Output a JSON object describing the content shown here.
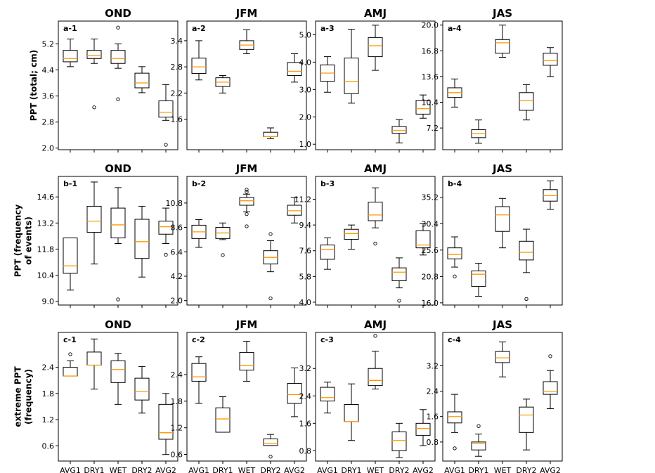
{
  "figure": {
    "row_labels": [
      [
        "PPT (total; cm)"
      ],
      [
        "PPT (frequency",
        "of events)"
      ],
      [
        "extreme PPT",
        "(frequency)"
      ]
    ],
    "colors": {
      "box": "#000000",
      "median": "#ff9900",
      "flier": "#000000"
    }
  },
  "chart_data": [
    {
      "type": "box",
      "label": "a-1",
      "title": "OND",
      "categories": [
        "AVG1",
        "DRY1",
        "WET",
        "DRY2",
        "AVG2"
      ],
      "ylim": [
        1.95,
        5.9
      ],
      "yticks": [
        "2.0",
        "2.8",
        "3.6",
        "4.4",
        "5.2"
      ],
      "xticklabels": false,
      "boxes": [
        {
          "whislo": 4.5,
          "q1": 4.65,
          "med": 4.75,
          "q3": 5.0,
          "whishi": 5.35,
          "fliers": []
        },
        {
          "whislo": 4.6,
          "q1": 4.75,
          "med": 4.85,
          "q3": 5.0,
          "whishi": 5.35,
          "fliers": [
            3.25
          ]
        },
        {
          "whislo": 4.45,
          "q1": 4.6,
          "med": 4.75,
          "q3": 5.0,
          "whishi": 5.2,
          "fliers": [
            5.7,
            3.5
          ]
        },
        {
          "whislo": 3.7,
          "q1": 3.85,
          "med": 4.0,
          "q3": 4.3,
          "whishi": 4.5,
          "fliers": []
        },
        {
          "whislo": 2.85,
          "q1": 2.95,
          "med": 3.1,
          "q3": 3.45,
          "whishi": 3.95,
          "fliers": [
            2.1
          ]
        }
      ]
    },
    {
      "type": "box",
      "label": "a-2",
      "title": "JFM",
      "categories": [
        "AVG1",
        "DRY1",
        "WET",
        "DRY2",
        "AVG2"
      ],
      "ylim": [
        0.9,
        3.85
      ],
      "yticks": [
        "1.6",
        "2.2",
        "2.8",
        "3.4"
      ],
      "xticklabels": false,
      "boxes": [
        {
          "whislo": 2.5,
          "q1": 2.65,
          "med": 2.8,
          "q3": 3.0,
          "whishi": 3.4,
          "fliers": []
        },
        {
          "whislo": 2.2,
          "q1": 2.35,
          "med": 2.45,
          "q3": 2.55,
          "whishi": 2.6,
          "fliers": []
        },
        {
          "whislo": 3.1,
          "q1": 3.2,
          "med": 3.3,
          "q3": 3.4,
          "whishi": 3.65,
          "fliers": []
        },
        {
          "whislo": 1.15,
          "q1": 1.2,
          "med": 1.2,
          "q3": 1.3,
          "whishi": 1.4,
          "fliers": []
        },
        {
          "whislo": 2.45,
          "q1": 2.6,
          "med": 2.7,
          "q3": 2.9,
          "whishi": 3.1,
          "fliers": []
        }
      ]
    },
    {
      "type": "box",
      "label": "a-3",
      "title": "AMJ",
      "categories": [
        "AVG1",
        "DRY1",
        "WET",
        "DRY2",
        "AVG2"
      ],
      "ylim": [
        0.8,
        5.5
      ],
      "yticks": [
        "1.0",
        "2.0",
        "3.0",
        "4.0",
        "5.0"
      ],
      "xticklabels": false,
      "boxes": [
        {
          "whislo": 2.9,
          "q1": 3.3,
          "med": 3.6,
          "q3": 3.9,
          "whishi": 4.2,
          "fliers": []
        },
        {
          "whislo": 2.5,
          "q1": 2.85,
          "med": 3.3,
          "q3": 4.15,
          "whishi": 5.2,
          "fliers": []
        },
        {
          "whislo": 3.7,
          "q1": 4.2,
          "med": 4.6,
          "q3": 4.9,
          "whishi": 5.35,
          "fliers": []
        },
        {
          "whislo": 1.05,
          "q1": 1.4,
          "med": 1.5,
          "q3": 1.65,
          "whishi": 1.9,
          "fliers": []
        },
        {
          "whislo": 1.95,
          "q1": 2.1,
          "med": 2.3,
          "q3": 2.6,
          "whishi": 2.8,
          "fliers": []
        }
      ]
    },
    {
      "type": "box",
      "label": "a-4",
      "title": "JAS",
      "categories": [
        "AVG1",
        "DRY1",
        "WET",
        "DRY2",
        "AVG2"
      ],
      "ylim": [
        4.5,
        20.5
      ],
      "yticks": [
        "7.2",
        "10.4",
        "13.6",
        "16.8",
        "20.0"
      ],
      "xticklabels": false,
      "boxes": [
        {
          "whislo": 9.8,
          "q1": 11.0,
          "med": 11.6,
          "q3": 12.2,
          "whishi": 13.3,
          "fliers": []
        },
        {
          "whislo": 5.3,
          "q1": 6.0,
          "med": 6.5,
          "q3": 7.0,
          "whishi": 8.2,
          "fliers": []
        },
        {
          "whislo": 16.0,
          "q1": 16.5,
          "med": 17.8,
          "q3": 18.2,
          "whishi": 20.0,
          "fliers": []
        },
        {
          "whislo": 8.2,
          "q1": 9.4,
          "med": 10.6,
          "q3": 11.6,
          "whishi": 12.6,
          "fliers": []
        },
        {
          "whislo": 13.6,
          "q1": 15.0,
          "med": 15.6,
          "q3": 16.5,
          "whishi": 17.2,
          "fliers": []
        }
      ]
    },
    {
      "type": "box",
      "label": "b-1",
      "title": "OND",
      "categories": [
        "AVG1",
        "DRY1",
        "WET",
        "DRY2",
        "AVG2"
      ],
      "ylim": [
        8.8,
        15.7
      ],
      "yticks": [
        "9.0",
        "10.4",
        "11.8",
        "13.2",
        "14.6"
      ],
      "xticklabels": false,
      "boxes": [
        {
          "whislo": 9.6,
          "q1": 10.5,
          "med": 10.9,
          "q3": 12.4,
          "whishi": 12.4,
          "fliers": []
        },
        {
          "whislo": 11.0,
          "q1": 12.7,
          "med": 13.3,
          "q3": 14.1,
          "whishi": 15.4,
          "fliers": []
        },
        {
          "whislo": 12.1,
          "q1": 12.4,
          "med": 13.1,
          "q3": 14.0,
          "whishi": 15.1,
          "fliers": [
            9.1
          ]
        },
        {
          "whislo": 10.3,
          "q1": 11.3,
          "med": 12.2,
          "q3": 13.4,
          "whishi": 14.1,
          "fliers": []
        },
        {
          "whislo": 12.1,
          "q1": 12.6,
          "med": 13.0,
          "q3": 13.3,
          "whishi": 14.0,
          "fliers": [
            11.5
          ]
        }
      ]
    },
    {
      "type": "box",
      "label": "b-2",
      "title": "JFM",
      "categories": [
        "AVG1",
        "DRY1",
        "WET",
        "DRY2",
        "AVG2"
      ],
      "ylim": [
        1.6,
        13.2
      ],
      "yticks": [
        "2.0",
        "4.2",
        "6.4",
        "8.6",
        "10.8"
      ],
      "xticklabels": false,
      "boxes": [
        {
          "whislo": 6.8,
          "q1": 7.6,
          "med": 8.2,
          "q3": 8.8,
          "whishi": 9.3,
          "fliers": []
        },
        {
          "whislo": 7.5,
          "q1": 7.6,
          "med": 8.1,
          "q3": 8.6,
          "whishi": 9.0,
          "fliers": [
            6.1
          ]
        },
        {
          "whislo": 10.0,
          "q1": 10.6,
          "med": 11.0,
          "q3": 11.3,
          "whishi": 11.6,
          "fliers": [
            12.0,
            11.8,
            9.8,
            8.7
          ]
        },
        {
          "whislo": 4.6,
          "q1": 5.3,
          "med": 5.9,
          "q3": 6.5,
          "whishi": 7.4,
          "fliers": [
            8.0,
            2.2
          ]
        },
        {
          "whislo": 9.0,
          "q1": 9.7,
          "med": 10.1,
          "q3": 10.6,
          "whishi": 11.3,
          "fliers": []
        }
      ]
    },
    {
      "type": "box",
      "label": "b-3",
      "title": "AMJ",
      "categories": [
        "AVG1",
        "DRY1",
        "WET",
        "DRY2",
        "AVG2"
      ],
      "ylim": [
        3.8,
        12.8
      ],
      "yticks": [
        "4.0",
        "5.8",
        "7.6",
        "9.4",
        "11.2"
      ],
      "xticklabels": false,
      "boxes": [
        {
          "whislo": 6.3,
          "q1": 7.0,
          "med": 7.7,
          "q3": 8.0,
          "whishi": 8.5,
          "fliers": []
        },
        {
          "whislo": 7.7,
          "q1": 8.4,
          "med": 8.8,
          "q3": 9.1,
          "whishi": 9.4,
          "fliers": []
        },
        {
          "whislo": 9.2,
          "q1": 9.7,
          "med": 10.1,
          "q3": 11.0,
          "whishi": 12.0,
          "fliers": [
            8.1
          ]
        },
        {
          "whislo": 5.0,
          "q1": 5.5,
          "med": 6.1,
          "q3": 6.4,
          "whishi": 7.1,
          "fliers": [
            4.1
          ]
        },
        {
          "whislo": 7.3,
          "q1": 7.8,
          "med": 8.0,
          "q3": 9.0,
          "whishi": 9.5,
          "fliers": []
        }
      ]
    },
    {
      "type": "box",
      "label": "b-4",
      "title": "JAS",
      "categories": [
        "AVG1",
        "DRY1",
        "WET",
        "DRY2",
        "AVG2"
      ],
      "ylim": [
        15.6,
        39.0
      ],
      "yticks": [
        "16.0",
        "20.8",
        "25.6",
        "30.4",
        "35.2"
      ],
      "xticklabels": false,
      "boxes": [
        {
          "whislo": 22.5,
          "q1": 24.0,
          "med": 24.8,
          "q3": 26.0,
          "whishi": 28.0,
          "fliers": [
            20.8
          ]
        },
        {
          "whislo": 17.2,
          "q1": 19.0,
          "med": 21.2,
          "q3": 21.8,
          "whishi": 23.2,
          "fliers": []
        },
        {
          "whislo": 26.0,
          "q1": 29.0,
          "med": 32.0,
          "q3": 33.5,
          "whishi": 35.0,
          "fliers": []
        },
        {
          "whislo": 21.5,
          "q1": 23.8,
          "med": 25.2,
          "q3": 27.2,
          "whishi": 29.4,
          "fliers": [
            16.7
          ]
        },
        {
          "whislo": 33.0,
          "q1": 34.5,
          "med": 35.5,
          "q3": 36.6,
          "whishi": 38.2,
          "fliers": []
        }
      ]
    },
    {
      "type": "box",
      "label": "c-1",
      "title": "OND",
      "categories": [
        "AVG1",
        "DRY1",
        "WET",
        "DRY2",
        "AVG2"
      ],
      "ylim": [
        0.25,
        3.2
      ],
      "yticks": [
        "0.6",
        "1.2",
        "1.8",
        "2.4"
      ],
      "xticklabels": true,
      "boxes": [
        {
          "whislo": 2.2,
          "q1": 2.2,
          "med": 2.2,
          "q3": 2.4,
          "whishi": 2.55,
          "fliers": [
            2.7
          ]
        },
        {
          "whislo": 1.9,
          "q1": 2.45,
          "med": 2.45,
          "q3": 2.75,
          "whishi": 3.05,
          "fliers": []
        },
        {
          "whislo": 1.55,
          "q1": 2.05,
          "med": 2.35,
          "q3": 2.55,
          "whishi": 2.72,
          "fliers": []
        },
        {
          "whislo": 1.35,
          "q1": 1.65,
          "med": 1.85,
          "q3": 2.15,
          "whishi": 2.42,
          "fliers": []
        },
        {
          "whislo": 0.4,
          "q1": 0.75,
          "med": 0.9,
          "q3": 1.55,
          "whishi": 1.8,
          "fliers": []
        }
      ]
    },
    {
      "type": "box",
      "label": "c-2",
      "title": "JFM",
      "categories": [
        "AVG1",
        "DRY1",
        "WET",
        "DRY2",
        "AVG2"
      ],
      "ylim": [
        0.45,
        3.35
      ],
      "yticks": [
        "0.6",
        "1.2",
        "1.8",
        "2.4"
      ],
      "xticklabels": true,
      "boxes": [
        {
          "whislo": 1.75,
          "q1": 2.25,
          "med": 2.35,
          "q3": 2.65,
          "whishi": 2.8,
          "fliers": []
        },
        {
          "whislo": 1.1,
          "q1": 1.1,
          "med": 1.4,
          "q3": 1.65,
          "whishi": 1.9,
          "fliers": []
        },
        {
          "whislo": 2.25,
          "q1": 2.5,
          "med": 2.6,
          "q3": 2.9,
          "whishi": 3.15,
          "fliers": []
        },
        {
          "whislo": 0.8,
          "q1": 0.8,
          "med": 0.85,
          "q3": 0.95,
          "whishi": 1.05,
          "fliers": [
            0.55
          ]
        },
        {
          "whislo": 1.45,
          "q1": 1.75,
          "med": 1.95,
          "q3": 2.2,
          "whishi": 2.55,
          "fliers": []
        }
      ]
    },
    {
      "type": "box",
      "label": "c-3",
      "title": "AMJ",
      "categories": [
        "AVG1",
        "DRY1",
        "WET",
        "DRY2",
        "AVG2"
      ],
      "ylim": [
        0.5,
        4.25
      ],
      "yticks": [
        "0.8",
        "1.6",
        "2.4",
        "3.2"
      ],
      "xticklabels": true,
      "boxes": [
        {
          "whislo": 1.9,
          "q1": 2.25,
          "med": 2.35,
          "q3": 2.65,
          "whishi": 2.8,
          "fliers": []
        },
        {
          "whislo": 1.1,
          "q1": 1.65,
          "med": 1.65,
          "q3": 2.15,
          "whishi": 2.75,
          "fliers": []
        },
        {
          "whislo": 2.6,
          "q1": 2.7,
          "med": 2.85,
          "q3": 3.2,
          "whishi": 3.7,
          "fliers": [
            4.15
          ]
        },
        {
          "whislo": 0.6,
          "q1": 0.8,
          "med": 1.1,
          "q3": 1.35,
          "whishi": 1.6,
          "fliers": []
        },
        {
          "whislo": 0.95,
          "q1": 1.25,
          "med": 1.45,
          "q3": 1.6,
          "whishi": 2.0,
          "fliers": []
        }
      ]
    },
    {
      "type": "box",
      "label": "c-4",
      "title": "JAS",
      "categories": [
        "AVG1",
        "DRY1",
        "WET",
        "DRY2",
        "AVG2"
      ],
      "ylim": [
        0.2,
        4.25
      ],
      "yticks": [
        "0.8",
        "1.6",
        "2.4",
        "3.2"
      ],
      "xticklabels": true,
      "boxes": [
        {
          "whislo": 1.1,
          "q1": 1.4,
          "med": 1.6,
          "q3": 1.75,
          "whishi": 2.3,
          "fliers": [
            0.6
          ]
        },
        {
          "whislo": 0.35,
          "q1": 0.55,
          "med": 0.75,
          "q3": 0.8,
          "whishi": 1.05,
          "fliers": [
            1.3
          ]
        },
        {
          "whislo": 2.85,
          "q1": 3.3,
          "med": 3.45,
          "q3": 3.65,
          "whishi": 3.95,
          "fliers": []
        },
        {
          "whislo": 0.55,
          "q1": 1.1,
          "med": 1.65,
          "q3": 1.9,
          "whishi": 2.15,
          "fliers": []
        },
        {
          "whislo": 1.85,
          "q1": 2.3,
          "med": 2.4,
          "q3": 2.7,
          "whishi": 3.05,
          "fliers": [
            3.5
          ]
        }
      ]
    }
  ]
}
